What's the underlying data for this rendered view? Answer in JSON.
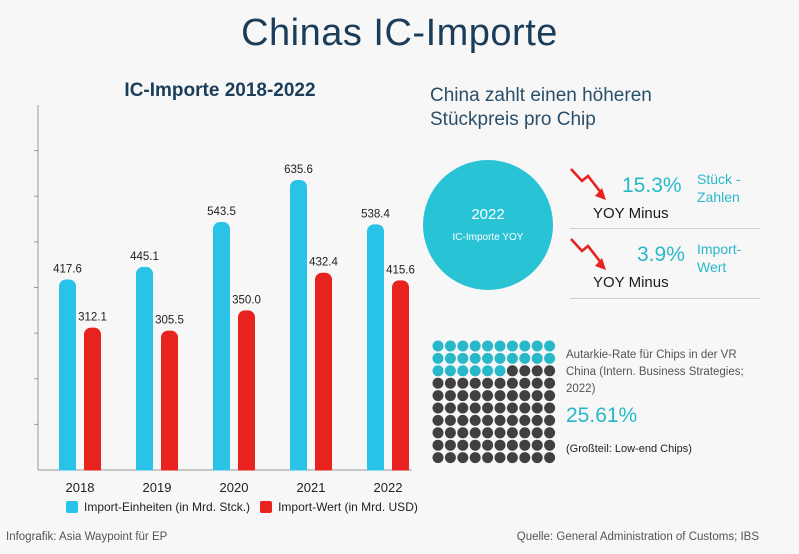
{
  "title": "Chinas IC-Importe",
  "colors": {
    "units": "#29c3e8",
    "value": "#e8231f",
    "accent": "#29b8c9",
    "dot_dark": "#404040"
  },
  "chart_data": {
    "type": "bar",
    "title": "IC-Importe 2018-2022",
    "categories": [
      "2018",
      "2019",
      "2020",
      "2021",
      "2022"
    ],
    "series": [
      {
        "name": "Import-Einheiten (in Mrd. Stck.)",
        "values": [
          417.6,
          445.1,
          543.5,
          635.6,
          538.4
        ],
        "labels": [
          "417.6",
          "445.1",
          "543.5",
          "635.6",
          "538.4"
        ]
      },
      {
        "name": "Import-Wert (in Mrd. USD)",
        "values": [
          312.1,
          305.5,
          350.0,
          432.4,
          415.6
        ],
        "labels": [
          "312.1",
          "305.5",
          "350.0",
          "432.4",
          "415.6"
        ]
      }
    ],
    "ylim": [
      0,
      800
    ],
    "grid": false,
    "legend_position": "bottom"
  },
  "headline": {
    "line1": "China zahlt einen höheren",
    "line2": "Stückpreis pro Chip"
  },
  "circle": {
    "year": "2022",
    "label": "IC-Importe YOY"
  },
  "stats": [
    {
      "pct": "15.3%",
      "suffix": "YOY  Minus",
      "label_line1": "Stück -",
      "label_line2": "Zahlen"
    },
    {
      "pct": "3.9%",
      "suffix": "YOY  Minus",
      "label_line1": "Import-",
      "label_line2": "Wert"
    }
  ],
  "autarkie": {
    "text_line1": "Autarkie-Rate für Chips in der VR",
    "text_line2": "China (Intern. Business Strategies;",
    "text_line3": "2022)",
    "pct": "25.61%",
    "note": "(Großteil: Low-end Chips)",
    "rate": 0.2561
  },
  "footer": {
    "left": "Infografik: Asia Waypoint für EP",
    "right": "Quelle: General Administration of Customs; IBS"
  }
}
